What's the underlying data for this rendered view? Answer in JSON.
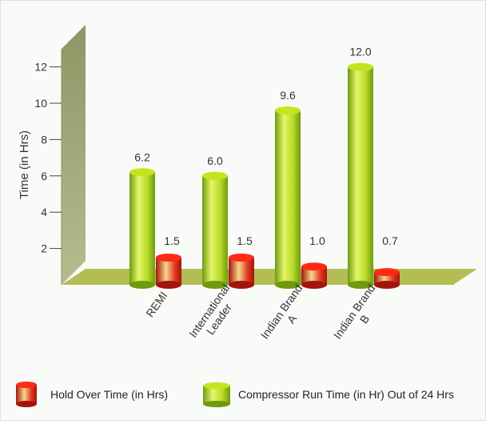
{
  "chart_data": {
    "type": "bar",
    "categories": [
      [
        "REMI"
      ],
      [
        "International",
        "Leader"
      ],
      [
        "Indian Brand",
        "A"
      ],
      [
        "Indian Brand",
        "B"
      ]
    ],
    "series": [
      {
        "name": "Compressor Run Time (in Hr) Out of 24 Hrs",
        "values": [
          6.2,
          6.0,
          9.6,
          12.0
        ],
        "labels": [
          "6.2",
          "6.0",
          "9.6",
          "12.0"
        ]
      },
      {
        "name": "Hold Over Time (in Hrs)",
        "values": [
          1.5,
          1.5,
          1.0,
          0.7
        ],
        "labels": [
          "1.5",
          "1.5",
          "1.0",
          "0.7"
        ]
      }
    ],
    "ylabel": "Time (in Hrs)",
    "yticks": [
      2,
      4,
      6,
      8,
      10,
      12
    ],
    "ylim": [
      0,
      13
    ],
    "legend_position": "bottom",
    "colors": {
      "compressor_light": "#e4f56a",
      "compressor_mid": "#b9dc2a",
      "compressor_dark": "#6f9a0e",
      "hold_light": "#f7d58a",
      "hold_mid": "#e0361f",
      "hold_dark": "#a3150c",
      "wall": "#9ea478",
      "floor": "#b4bd54"
    }
  }
}
